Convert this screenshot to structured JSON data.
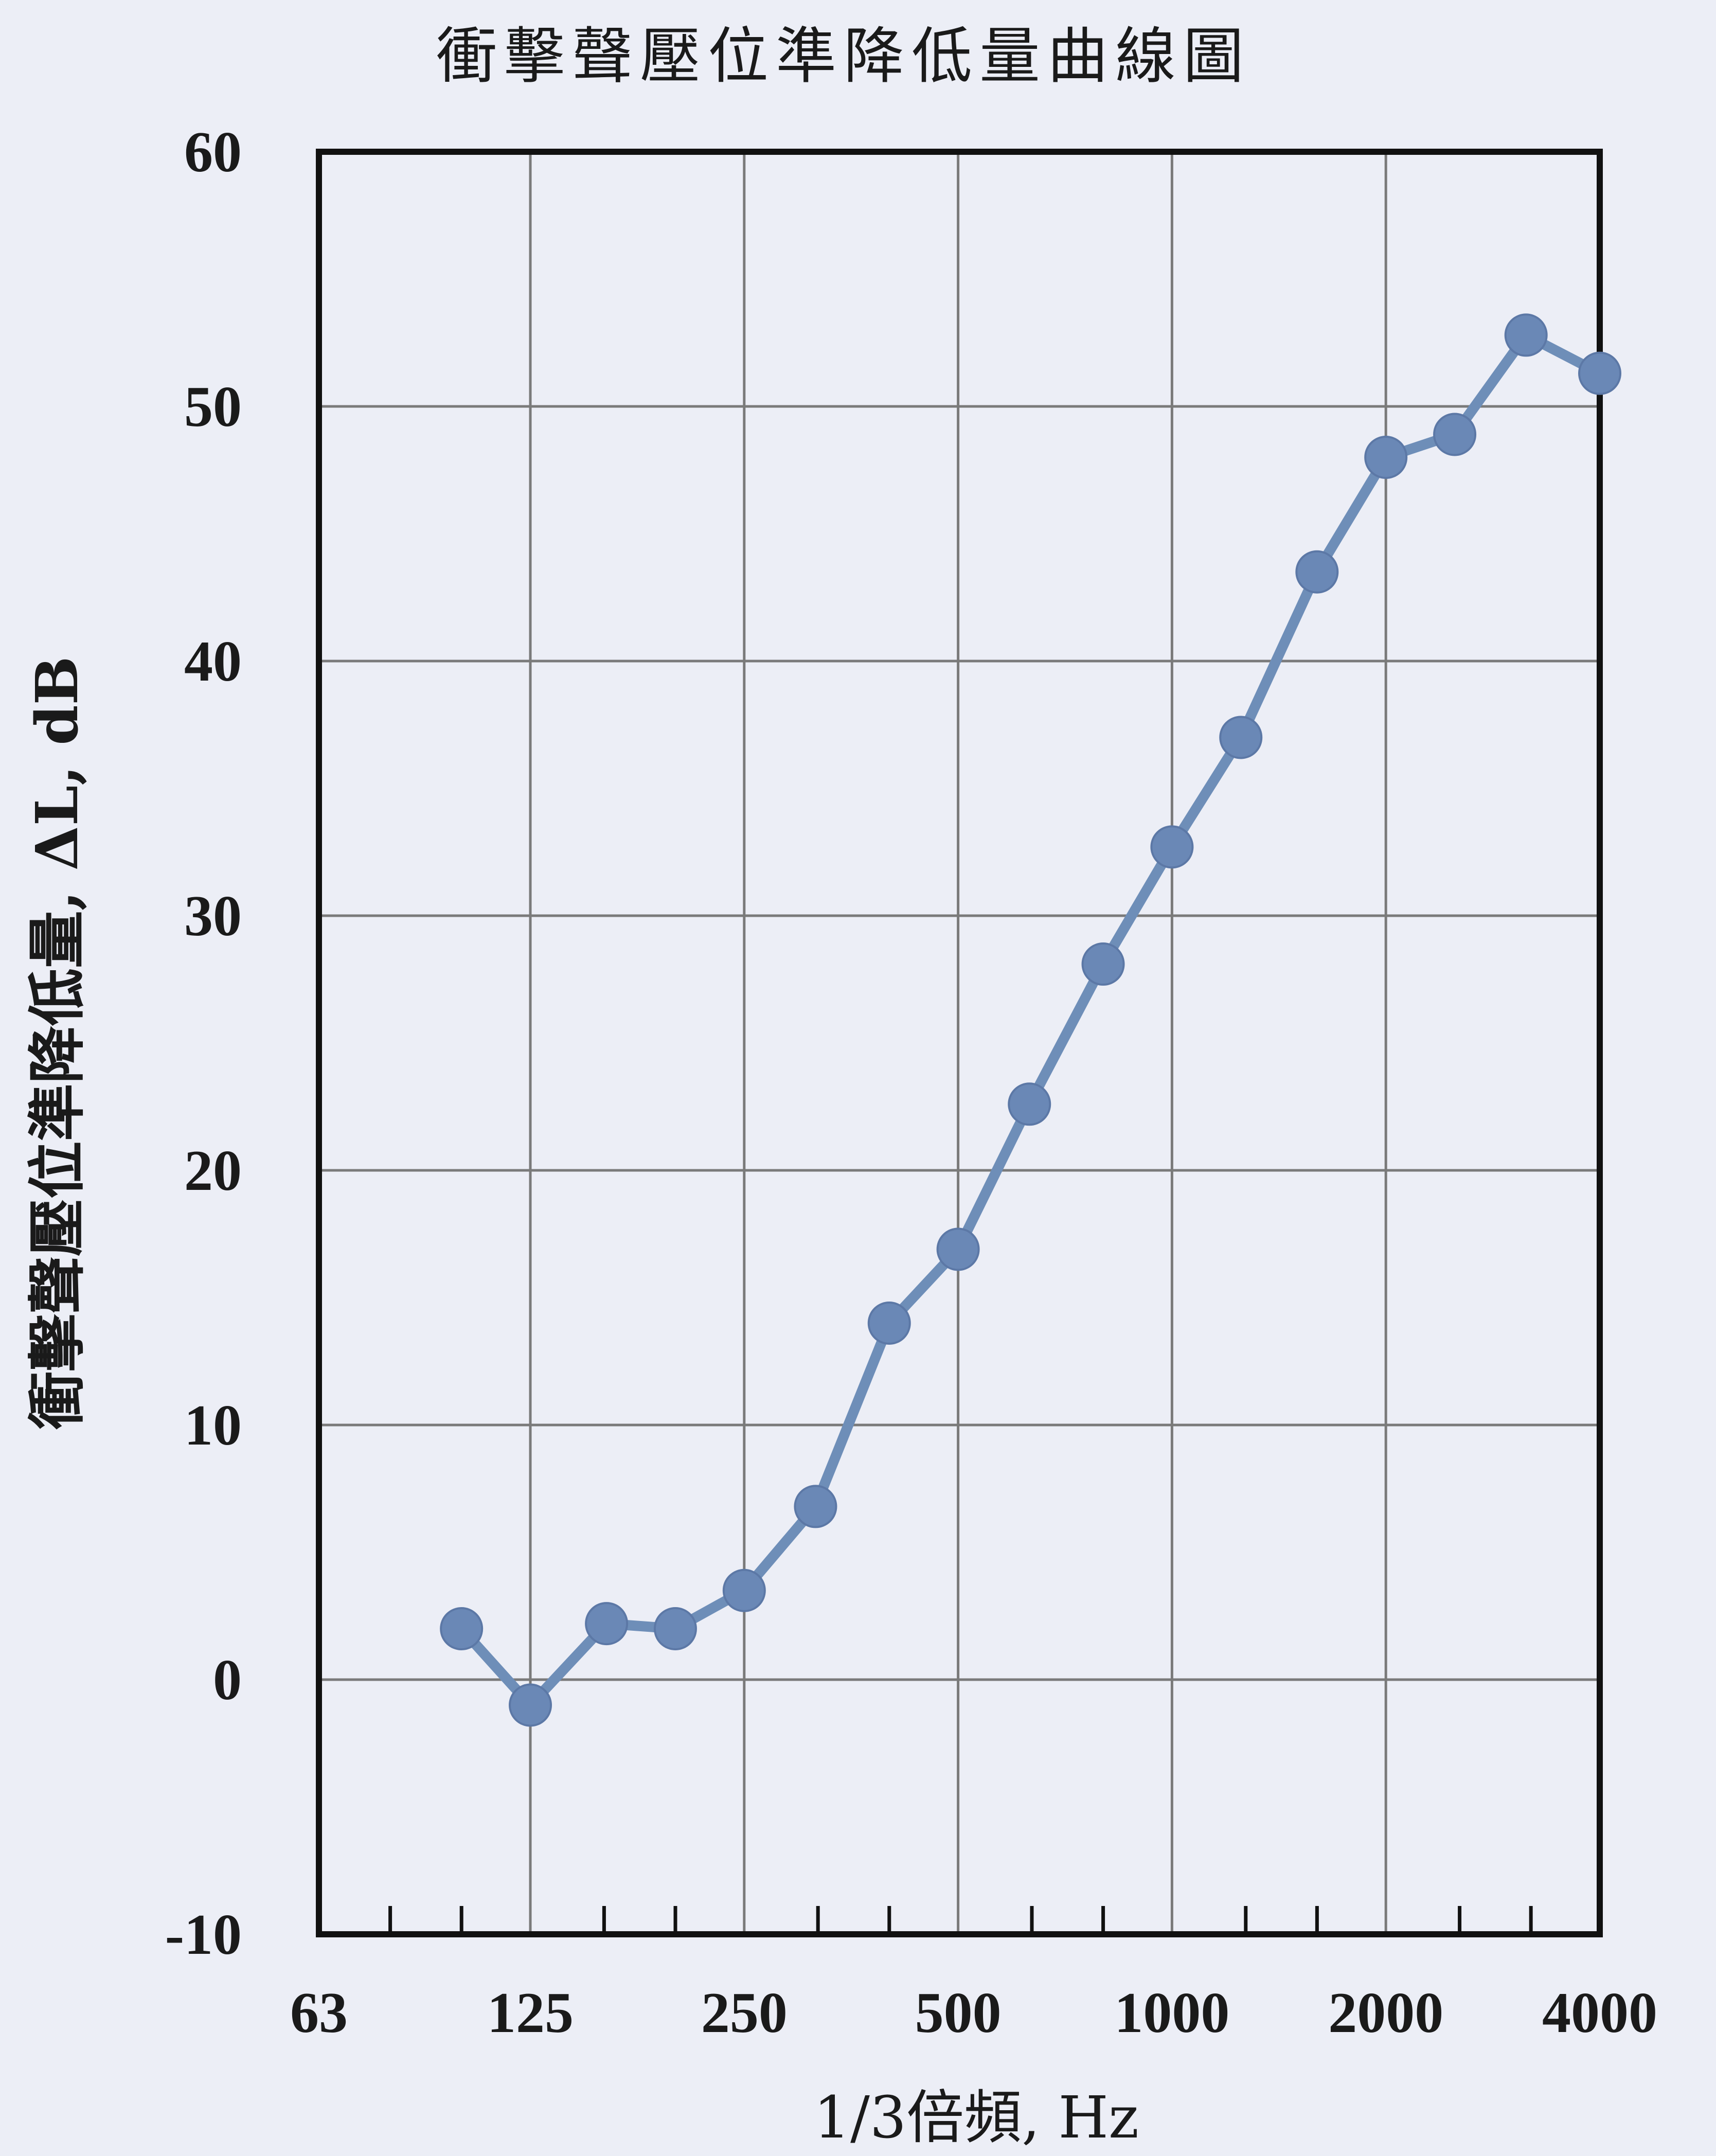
{
  "chart_data": {
    "type": "line",
    "title": "衝擊聲壓位準降低量曲線圖",
    "xlabel": "1/3倍頻, Hz",
    "ylabel": "衝擊聲壓位準降低量, ΔL, dB",
    "x_scale": "log",
    "xlim": [
      63,
      4000
    ],
    "ylim": [
      -10,
      60
    ],
    "x_ticks": [
      "63",
      "125",
      "250",
      "500",
      "1000",
      "2000",
      "4000"
    ],
    "y_ticks": [
      "60",
      "50",
      "40",
      "30",
      "20",
      "10",
      "0",
      "-10"
    ],
    "grid": true,
    "series": [
      {
        "x": [
          100,
          125,
          160,
          200,
          250,
          315,
          400,
          500,
          630,
          800,
          1000,
          1250,
          1600,
          2000,
          2500,
          3150,
          4000
        ],
        "values": [
          2.0,
          -1.0,
          2.2,
          2.0,
          3.5,
          6.8,
          14.0,
          16.9,
          22.6,
          28.1,
          32.7,
          37.0,
          43.5,
          48.0,
          48.9,
          52.8,
          51.3
        ]
      }
    ],
    "colors": {
      "line": "#6e8eb8",
      "marker": "#6a88b6",
      "grid": "#7a7a7a",
      "frame": "#111111"
    }
  }
}
